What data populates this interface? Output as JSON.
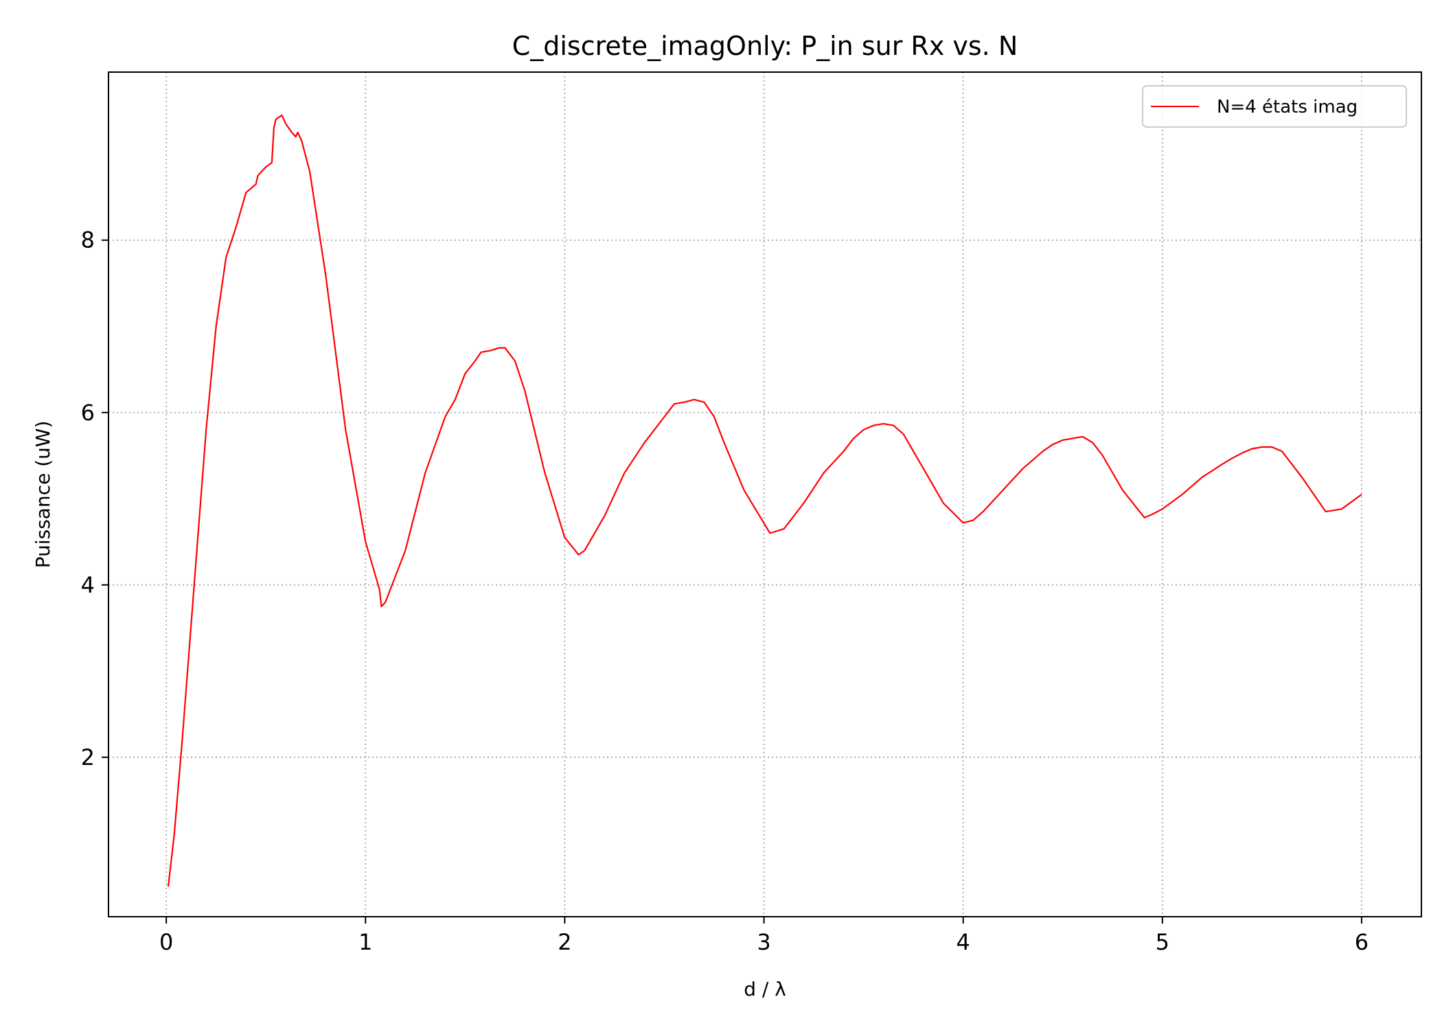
{
  "chart_data": {
    "type": "line",
    "title": "C_discrete_imagOnly: P_in sur Rx vs. N",
    "xlabel": "d / λ",
    "ylabel": "Puissance (uW)",
    "xlim": [
      -0.29,
      6.3
    ],
    "ylim": [
      0.15,
      9.95
    ],
    "xticks": [
      0,
      1,
      2,
      3,
      4,
      5,
      6
    ],
    "xtick_labels": [
      "0",
      "1",
      "2",
      "3",
      "4",
      "5",
      "6"
    ],
    "yticks": [
      2,
      4,
      6,
      8
    ],
    "ytick_labels": [
      "2",
      "4",
      "6",
      "8"
    ],
    "grid": true,
    "legend_position": "top-right",
    "series": [
      {
        "name": "N=4 états imag",
        "color": "#ff0000",
        "x": [
          0.01,
          0.04,
          0.08,
          0.12,
          0.16,
          0.2,
          0.25,
          0.3,
          0.35,
          0.4,
          0.45,
          0.46,
          0.5,
          0.53,
          0.54,
          0.55,
          0.58,
          0.6,
          0.63,
          0.65,
          0.66,
          0.68,
          0.72,
          0.8,
          0.9,
          1.0,
          1.07,
          1.08,
          1.1,
          1.2,
          1.3,
          1.4,
          1.45,
          1.5,
          1.55,
          1.58,
          1.63,
          1.67,
          1.7,
          1.75,
          1.8,
          1.9,
          2.0,
          2.07,
          2.1,
          2.2,
          2.3,
          2.4,
          2.45,
          2.5,
          2.55,
          2.6,
          2.65,
          2.7,
          2.75,
          2.8,
          2.9,
          3.03,
          3.1,
          3.2,
          3.3,
          3.4,
          3.45,
          3.5,
          3.55,
          3.6,
          3.65,
          3.7,
          3.8,
          3.9,
          4.0,
          4.05,
          4.1,
          4.2,
          4.3,
          4.4,
          4.45,
          4.5,
          4.55,
          4.6,
          4.65,
          4.7,
          4.8,
          4.91,
          4.95,
          5.0,
          5.1,
          5.2,
          5.3,
          5.35,
          5.4,
          5.45,
          5.5,
          5.55,
          5.6,
          5.7,
          5.82,
          5.9,
          6.0
        ],
        "values": [
          0.5,
          1.1,
          2.2,
          3.4,
          4.6,
          5.8,
          7.0,
          7.8,
          8.15,
          8.55,
          8.65,
          8.75,
          8.85,
          8.9,
          9.3,
          9.4,
          9.45,
          9.35,
          9.25,
          9.2,
          9.25,
          9.15,
          8.8,
          7.6,
          5.8,
          4.5,
          3.95,
          3.75,
          3.8,
          4.4,
          5.3,
          5.95,
          6.15,
          6.45,
          6.6,
          6.7,
          6.72,
          6.75,
          6.75,
          6.6,
          6.25,
          5.3,
          4.55,
          4.35,
          4.4,
          4.8,
          5.3,
          5.65,
          5.8,
          5.95,
          6.1,
          6.12,
          6.15,
          6.12,
          5.95,
          5.65,
          5.1,
          4.6,
          4.65,
          4.95,
          5.3,
          5.55,
          5.7,
          5.8,
          5.85,
          5.87,
          5.85,
          5.75,
          5.35,
          4.95,
          4.72,
          4.75,
          4.85,
          5.1,
          5.35,
          5.55,
          5.63,
          5.68,
          5.7,
          5.72,
          5.65,
          5.5,
          5.1,
          4.78,
          4.82,
          4.88,
          5.05,
          5.25,
          5.4,
          5.47,
          5.53,
          5.58,
          5.6,
          5.6,
          5.55,
          5.25,
          4.85,
          4.88,
          5.05
        ]
      }
    ]
  }
}
